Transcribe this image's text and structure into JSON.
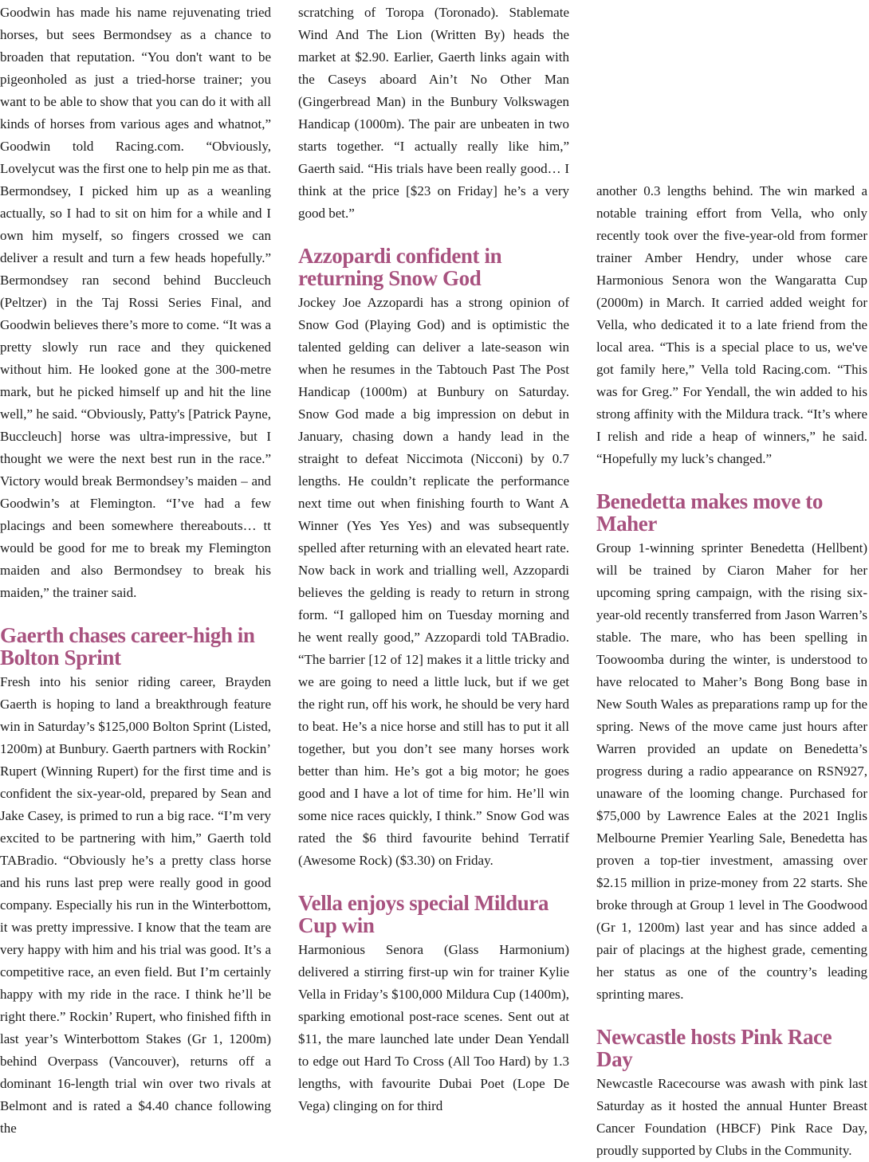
{
  "colors": {
    "heading": "#a8527f",
    "body": "#1a1a1a"
  },
  "columns": [
    {
      "p1": "Goodwin has made his name rejuvenating tried horses, but sees Bermondsey as a chance to broaden that reputation. “You don't want to be pigeonholed as just a tried-horse trainer; you want to be able to show that you can do it with all kinds of horses from various ages and whatnot,” Goodwin told Racing.com. “Obviously, Lovelycut was the first one to help pin me as that. Bermondsey, I picked him up as a weanling actually, so I had to sit on him for a while and I own him myself, so fingers crossed we can deliver a result and turn a few heads hopefully.” Bermondsey ran second behind Buccleuch (Peltzer) in the Taj Rossi Series Final, and Goodwin believes there’s more to come. “It was a pretty slowly run race and they quickened without him. He looked gone at the 300-metre mark, but he picked himself up and hit the line well,” he said. “Obviously, Patty's [Patrick Payne, Buccleuch] horse was ultra-impressive, but I thought we were the next best run in the race.” Victory would break Bermondsey’s maiden – and Goodwin’s at Flemington. “I’ve had a few placings and been somewhere thereabouts… tt would be good for me to break my Flemington maiden and also Bermondsey to break his maiden,” the trainer said.",
      "h1": "Gaerth chases career-high in Bolton Sprint",
      "p2": "Fresh into his senior riding career, Brayden Gaerth is hoping to land a breakthrough feature win in Saturday’s $125,000 Bolton Sprint (Listed, 1200m) at Bunbury. Gaerth partners with Rockin’ Rupert (Winning Rupert) for the first time and is confident the six-year-old, prepared by Sean and Jake Casey, is primed to run a big race. “I’m very excited to be partnering with him,” Gaerth told TABradio. “Obviously he’s a pretty class horse and his runs last prep were really good in good company. Especially his run in the Winterbottom, it was pretty impressive. I know that the team are very happy with him and his trial was good. It’s a competitive race, an even field. But I’m certainly happy with my ride in the race. I think he’ll be right there.” Rockin’ Rupert, who finished fifth in last year’s Winterbottom Stakes (Gr 1, 1200m) behind Overpass (Vancouver), returns off a dominant 16-length trial win over two rivals at Belmont and is rated a $4.40 chance following the"
    },
    {
      "p1": "scratching of Toropa (Toronado). Stablemate Wind And The Lion (Written By) heads the market at $2.90. Earlier, Gaerth links again with the Caseys aboard Ain’t No Other Man (Gingerbread Man) in the Bunbury Volkswagen Handicap (1000m). The pair are unbeaten in two starts together. “I actually really like him,” Gaerth said. “His trials have been really good… I think at the price [$23 on Friday] he’s a very good bet.”",
      "h1": "Azzopardi confident in returning Snow God",
      "p2": "Jockey Joe Azzopardi has a strong opinion of Snow God (Playing God) and is optimistic the talented gelding can deliver a late-season win when he resumes in the Tabtouch Past The Post Handicap (1000m) at Bunbury on Saturday. Snow God made a big impression on debut in January, chasing down a handy lead in the straight to defeat Niccimota (Nicconi) by 0.7 lengths. He couldn’t replicate the performance next time out when finishing fourth to Want A Winner (Yes Yes Yes) and was subsequently spelled after returning with an elevated heart rate. Now back in work and trialling well, Azzopardi believes the gelding is ready to return in strong form. “I galloped him on Tuesday morning and he went really good,” Azzopardi told TABradio. “The barrier [12 of 12] makes it a little tricky and we are going to need a little luck, but if we get the right run, off his work, he should be very hard to beat. He’s a nice horse and still has to put it all together, but you don’t see many horses work better than him. He’s got a big motor; he goes good and I have a lot of time for him. He’ll win some nice races quickly, I think.” Snow God was rated the $6 third favourite behind Terratif (Awesome Rock) ($3.30) on Friday.",
      "h2": "Vella enjoys special Mildura Cup win",
      "p3": "Harmonious Senora (Glass Harmonium) delivered a stirring first-up win for trainer Kylie Vella in Friday’s $100,000 Mildura Cup (1400m), sparking emotional post-race scenes. Sent out at $11, the mare launched late under Dean Yendall to edge out Hard To Cross (All Too Hard) by 1.3 lengths, with favourite Dubai Poet (Lope De Vega) clinging on for third"
    },
    {
      "p1": "another 0.3 lengths behind. The win marked a notable training effort from Vella, who only recently took over the five-year-old from former trainer Amber Hendry, under whose care Harmonious Senora won the Wangaratta Cup (2000m) in March. It carried added weight for Vella, who dedicated it to a late friend from the local area. “This is a special place to us, we've got family here,” Vella told Racing.com. “This was for Greg.” For Yendall, the win added to his strong affinity with the Mildura track. “It’s where I relish and ride a heap of winners,” he said. “Hopefully my luck’s changed.”",
      "h1": "Benedetta makes move to Maher",
      "p2": "Group 1-winning sprinter Benedetta (Hellbent) will be trained by Ciaron Maher for her upcoming spring campaign, with the rising six-year-old recently transferred from Jason Warren’s stable. The mare, who has been spelling in Toowoomba during the winter, is understood to have relocated to Maher’s Bong Bong base in New South Wales as preparations ramp up for the spring. News of the move came just hours after Warren provided an update on Benedetta’s progress during a radio appearance on RSN927, unaware of the looming change. Purchased for $75,000 by Lawrence Eales at the 2021 Inglis Melbourne Premier Yearling Sale, Benedetta has proven a top-tier investment, amassing over $2.15 million in prize-money from 22 starts. She broke through at Group 1 level in The Goodwood (Gr 1, 1200m) last year and has since added a pair of placings at the highest grade, cementing her status as one of the country’s leading sprinting mares.",
      "h2": "Newcastle hosts Pink Race Day",
      "p3": "Newcastle Racecourse was awash with pink last Saturday as it hosted the annual Hunter Breast Cancer Foundation (HBCF) Pink Race Day, proudly supported by Clubs in the Community."
    }
  ]
}
